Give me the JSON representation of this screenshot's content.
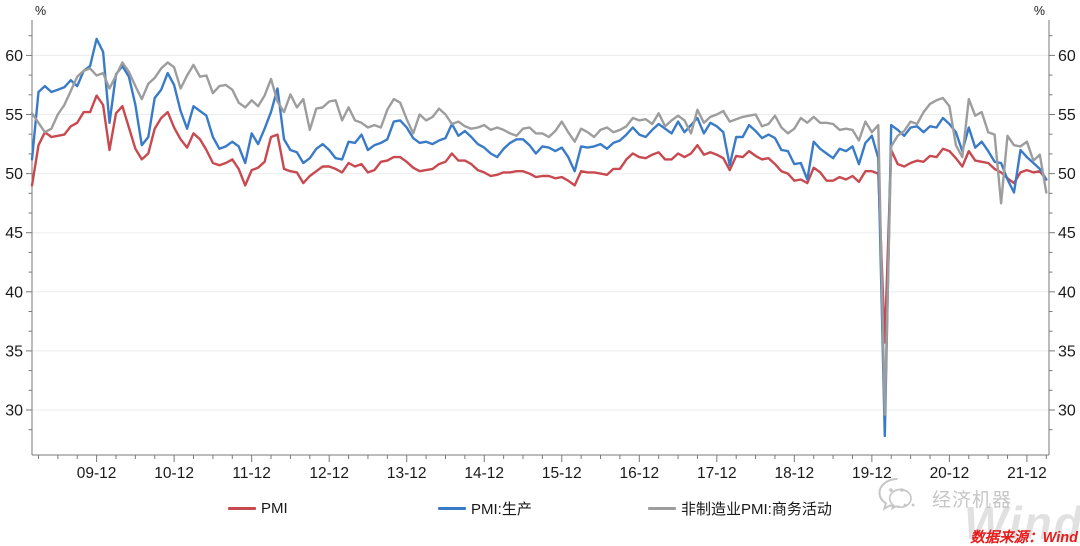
{
  "chart_data": {
    "type": "line",
    "title": "",
    "unit_label": "%",
    "x_start_month": "2009-02",
    "x_end_month": "2022-03",
    "x_tick_labels": [
      "09-12",
      "10-12",
      "11-12",
      "12-12",
      "13-12",
      "14-12",
      "15-12",
      "16-12",
      "17-12",
      "18-12",
      "19-12",
      "20-12",
      "21-12"
    ],
    "y_ticks": [
      30,
      35,
      40,
      45,
      50,
      55,
      60
    ],
    "ylim": [
      26.5,
      63.0
    ],
    "grid": "horizontal",
    "legend_position": "bottom",
    "series": [
      {
        "name": "PMI",
        "color": "#c8494f",
        "values": [
          49.0,
          52.4,
          53.5,
          53.1,
          53.2,
          53.3,
          54.0,
          54.3,
          55.2,
          55.2,
          56.6,
          55.8,
          52.0,
          55.1,
          55.7,
          53.9,
          52.1,
          51.2,
          51.7,
          53.8,
          54.7,
          55.2,
          53.9,
          52.9,
          52.2,
          53.4,
          52.9,
          52.0,
          50.9,
          50.7,
          50.9,
          51.2,
          50.4,
          49.0,
          50.3,
          50.5,
          51.0,
          53.1,
          53.3,
          50.4,
          50.2,
          50.1,
          49.2,
          49.8,
          50.2,
          50.6,
          50.6,
          50.4,
          50.1,
          50.9,
          50.6,
          50.8,
          50.1,
          50.3,
          51.0,
          51.1,
          51.4,
          51.4,
          51.0,
          50.5,
          50.2,
          50.3,
          50.4,
          50.8,
          51.0,
          51.7,
          51.1,
          51.1,
          50.8,
          50.3,
          50.1,
          49.8,
          49.9,
          50.1,
          50.1,
          50.2,
          50.2,
          50.0,
          49.7,
          49.8,
          49.8,
          49.6,
          49.7,
          49.4,
          49.0,
          50.2,
          50.1,
          50.1,
          50.0,
          49.9,
          50.4,
          50.4,
          51.2,
          51.7,
          51.4,
          51.3,
          51.6,
          51.8,
          51.2,
          51.2,
          51.7,
          51.4,
          51.7,
          52.4,
          51.6,
          51.8,
          51.6,
          51.3,
          50.3,
          51.5,
          51.4,
          51.9,
          51.5,
          51.2,
          51.3,
          50.8,
          50.2,
          50.0,
          49.4,
          49.5,
          49.2,
          50.5,
          50.1,
          49.4,
          49.4,
          49.7,
          49.5,
          49.8,
          49.3,
          50.2,
          50.2,
          50.0,
          35.7,
          52.0,
          50.8,
          50.6,
          50.9,
          51.1,
          51.0,
          51.5,
          51.4,
          52.1,
          51.9,
          51.3,
          50.6,
          51.9,
          51.1,
          51.0,
          50.9,
          50.4,
          50.1,
          49.6,
          49.2,
          50.1,
          50.3,
          50.1,
          50.2,
          49.5
        ]
      },
      {
        "name": "PMI:生产",
        "color": "#3a7bc8",
        "values": [
          51.2,
          56.9,
          57.4,
          56.9,
          57.1,
          57.3,
          57.9,
          57.4,
          58.7,
          59.1,
          61.4,
          60.3,
          54.3,
          58.4,
          59.1,
          58.2,
          55.8,
          52.4,
          53.1,
          56.4,
          57.1,
          58.5,
          57.5,
          55.3,
          53.8,
          55.7,
          55.3,
          54.9,
          53.1,
          52.1,
          52.3,
          52.7,
          52.3,
          50.9,
          53.4,
          52.5,
          53.8,
          55.2,
          57.2,
          52.9,
          52.0,
          51.8,
          50.9,
          51.3,
          52.1,
          52.5,
          52.0,
          51.3,
          51.2,
          52.7,
          52.6,
          53.3,
          52.0,
          52.4,
          52.6,
          52.9,
          54.4,
          54.5,
          53.9,
          53.0,
          52.6,
          52.7,
          52.5,
          52.8,
          53.0,
          54.2,
          53.2,
          53.6,
          53.1,
          52.5,
          52.2,
          51.7,
          51.4,
          52.1,
          52.6,
          52.9,
          52.9,
          52.4,
          51.7,
          52.3,
          52.2,
          51.9,
          52.2,
          51.4,
          50.2,
          52.3,
          52.2,
          52.3,
          52.5,
          52.1,
          52.6,
          52.8,
          53.3,
          53.9,
          53.3,
          53.1,
          53.7,
          54.2,
          53.8,
          53.4,
          54.4,
          53.5,
          54.1,
          54.7,
          53.4,
          54.3,
          54.0,
          53.5,
          50.7,
          53.1,
          53.1,
          54.1,
          53.6,
          53.0,
          53.3,
          53.0,
          52.0,
          51.9,
          50.8,
          50.9,
          49.5,
          52.7,
          52.1,
          51.7,
          51.3,
          52.1,
          51.9,
          52.3,
          50.8,
          52.6,
          53.2,
          51.3,
          27.8,
          54.1,
          53.7,
          53.2,
          53.9,
          54.0,
          53.5,
          54.0,
          53.9,
          54.7,
          54.2,
          53.5,
          51.9,
          53.9,
          52.2,
          52.7,
          51.9,
          51.0,
          50.9,
          49.5,
          48.4,
          52.0,
          51.4,
          50.9,
          50.4,
          49.5
        ]
      },
      {
        "name": "非制造业PMI:商务活动",
        "color": "#9d9d9d",
        "values": [
          55.1,
          54.3,
          53.5,
          53.8,
          55.0,
          55.8,
          57.0,
          58.2,
          58.7,
          58.9,
          58.3,
          58.5,
          57.2,
          58.3,
          59.4,
          58.6,
          57.4,
          56.3,
          57.6,
          58.1,
          58.9,
          59.4,
          59.0,
          57.2,
          58.3,
          59.2,
          58.2,
          58.3,
          56.8,
          57.4,
          57.5,
          57.1,
          56.0,
          55.6,
          56.2,
          55.7,
          56.6,
          58.0,
          56.1,
          55.2,
          56.7,
          55.6,
          56.3,
          53.7,
          55.5,
          55.6,
          56.1,
          56.2,
          54.5,
          55.6,
          54.5,
          54.3,
          53.9,
          54.1,
          53.9,
          55.4,
          56.3,
          56.0,
          54.6,
          53.4,
          55.0,
          54.5,
          54.8,
          55.5,
          55.0,
          54.2,
          54.4,
          54.0,
          53.8,
          53.9,
          54.1,
          53.7,
          53.9,
          53.7,
          53.4,
          53.2,
          53.8,
          53.9,
          53.4,
          53.4,
          53.1,
          53.6,
          54.4,
          53.5,
          52.7,
          53.8,
          53.5,
          53.1,
          53.7,
          53.9,
          53.5,
          53.7,
          54.0,
          54.7,
          54.5,
          54.6,
          54.2,
          55.1,
          54.0,
          54.5,
          54.9,
          54.5,
          53.4,
          55.4,
          54.3,
          54.8,
          55.0,
          55.3,
          54.4,
          54.6,
          54.8,
          54.9,
          55.0,
          54.0,
          54.2,
          54.9,
          53.9,
          53.4,
          53.8,
          54.7,
          54.3,
          54.8,
          54.3,
          54.3,
          54.2,
          53.7,
          53.8,
          53.7,
          52.8,
          54.4,
          53.5,
          54.1,
          29.6,
          52.3,
          53.2,
          53.6,
          54.4,
          54.2,
          55.2,
          55.9,
          56.2,
          56.4,
          55.7,
          52.4,
          51.4,
          56.3,
          54.9,
          55.2,
          53.5,
          53.3,
          47.5,
          53.2,
          52.4,
          52.3,
          52.7,
          51.1,
          51.6,
          48.4
        ]
      }
    ]
  },
  "legend": {
    "items": [
      "PMI",
      "PMI:生产",
      "非制造业PMI:商务活动"
    ]
  },
  "watermark": {
    "wechat_account": "经济机器",
    "brand": "Wind"
  },
  "source": {
    "text": "数据来源：Wind",
    "color": "#e81b1b"
  },
  "style": {
    "grid_color": "#ededed",
    "axis_color": "#7a7a7a",
    "tick_label_color": "#1a1a1a",
    "watermark_color": "#c6c6c6"
  }
}
